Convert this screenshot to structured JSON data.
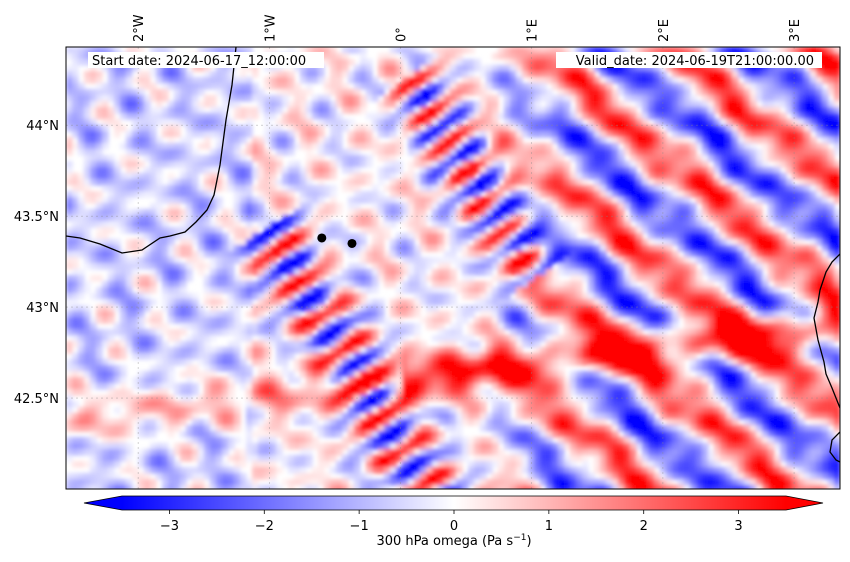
{
  "map": {
    "start_date_text": "Start date: 2024-06-17_12:00:00",
    "valid_date_text": "Valid_date: 2024-06-19T21:00:00.00",
    "variable": "300 hPa omega",
    "units": "Pa s",
    "units_exponent": "−1",
    "extent": {
      "lon_min": -2.55,
      "lon_max": 3.35,
      "lat_min": 42.0,
      "lat_max": 44.43
    },
    "lon_ticks": [
      {
        "value": -2,
        "label": "2°W"
      },
      {
        "value": -1,
        "label": "1°W"
      },
      {
        "value": 0,
        "label": "0°"
      },
      {
        "value": 1,
        "label": "1°E"
      },
      {
        "value": 2,
        "label": "2°E"
      },
      {
        "value": 3,
        "label": "3°E"
      }
    ],
    "lat_ticks": [
      {
        "value": 44.0,
        "label": "44°N"
      },
      {
        "value": 43.5,
        "label": "43.5°N"
      },
      {
        "value": 43.0,
        "label": "43°N"
      },
      {
        "value": 42.5,
        "label": "42.5°N"
      }
    ],
    "markers": [
      {
        "name": "point-1",
        "lon": -0.6,
        "lat": 43.38
      },
      {
        "name": "point-2",
        "lon": -0.37,
        "lat": 43.35
      }
    ],
    "colormap": {
      "name": "bwr",
      "low_color": "#0000ff",
      "mid_color": "#ffffff",
      "high_color": "#ff0000"
    },
    "colorbar": {
      "vmin": -3.5,
      "vmax": 3.5,
      "extend": "both",
      "ticks": [
        {
          "value": -3,
          "label": "−3"
        },
        {
          "value": -2,
          "label": "−2"
        },
        {
          "value": -1,
          "label": "−1"
        },
        {
          "value": 0,
          "label": "0"
        },
        {
          "value": 1,
          "label": "1"
        },
        {
          "value": 2,
          "label": "2"
        },
        {
          "value": 3,
          "label": "3"
        }
      ]
    },
    "gridlines": true,
    "coastline_color": "#000000"
  }
}
